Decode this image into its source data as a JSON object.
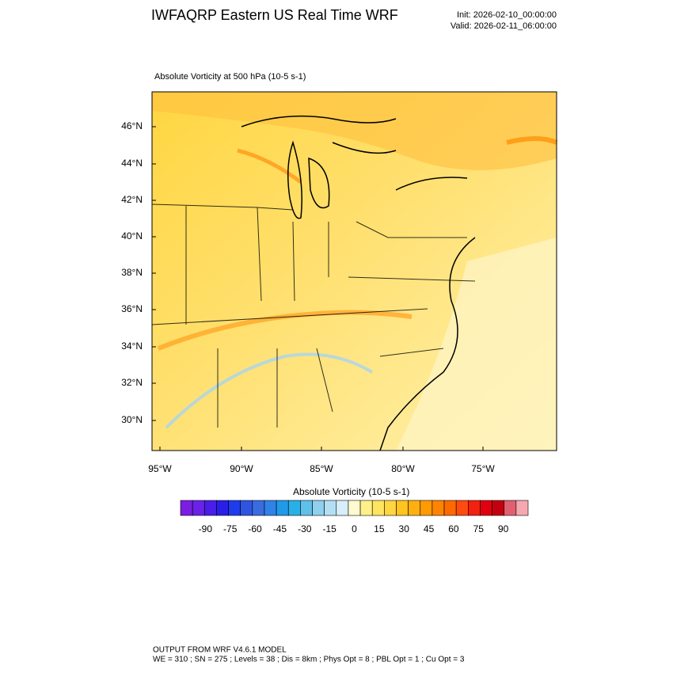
{
  "header": {
    "title": "IWFAQRP Eastern US Real Time WRF",
    "init": "Init: 2026-02-10_00:00:00",
    "valid": "Valid: 2026-02-11_06:00:00"
  },
  "map": {
    "subtitle": "Absolute Vorticity at 500 hPa   (10-5 s-1)",
    "lat_labels": [
      "46°N",
      "44°N",
      "42°N",
      "40°N",
      "38°N",
      "36°N",
      "34°N",
      "32°N",
      "30°N"
    ],
    "lon_labels": [
      "95°W",
      "90°W",
      "85°W",
      "80°W",
      "75°W"
    ]
  },
  "colorbar": {
    "title": "Absolute Vorticity  (10-5 s-1)",
    "range": [
      -105,
      105
    ],
    "ticks": [
      -90,
      -75,
      -60,
      -45,
      -30,
      -15,
      0,
      15,
      30,
      45,
      60,
      75,
      90
    ],
    "colors": [
      "#7a1fe0",
      "#6a22e8",
      "#4a1ee8",
      "#2a1ee8",
      "#1f3cec",
      "#2f55e0",
      "#3a6ce0",
      "#2f82e8",
      "#1f9ae8",
      "#2ab0e8",
      "#5fc0ea",
      "#8fd0ee",
      "#b4dff3",
      "#d8eef8",
      "#fffad0",
      "#fff08a",
      "#ffe460",
      "#ffd640",
      "#ffc41e",
      "#ffb010",
      "#ff9a00",
      "#ff8400",
      "#ff6a00",
      "#ff4a10",
      "#f42010",
      "#e00010",
      "#c40010",
      "#e06070",
      "#f5a8b0"
    ]
  },
  "footer": {
    "line1": "OUTPUT FROM WRF V4.6.1 MODEL",
    "line2": "WE = 310 ; SN = 275 ; Levels = 38 ; Dis = 8km ; Phys Opt = 8 ; PBL Opt = 1 ; Cu Opt = 3"
  }
}
